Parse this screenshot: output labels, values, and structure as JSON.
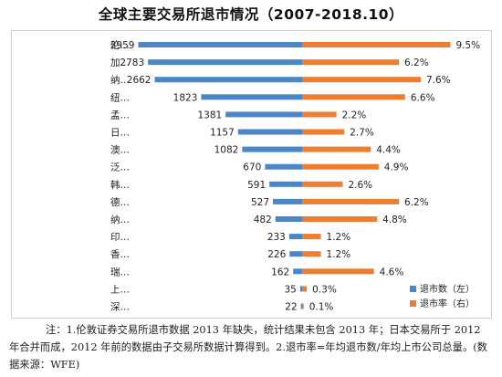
{
  "title": "全球主要交易所退市情况（2007-2018.10）",
  "colors": {
    "left_series": "#4a86c8",
    "right_series": "#ed7d31"
  },
  "chart_data": {
    "type": "bar",
    "orientation": "horizontal",
    "categories": [
      "伦…",
      "加…",
      "纳…",
      "纽…",
      "孟…",
      "日…",
      "澳…",
      "泛…",
      "韩…",
      "德…",
      "纳…",
      "印…",
      "香…",
      "瑞…",
      "上…",
      "深…"
    ],
    "series": [
      {
        "name": "退市数（左）",
        "axis": "left",
        "values": [
          2959,
          2783,
          2662,
          1823,
          1381,
          1157,
          1082,
          670,
          591,
          527,
          482,
          233,
          226,
          162,
          35,
          22
        ],
        "labels": [
          "2959",
          "2783",
          "2662",
          "1823",
          "1381",
          "1157",
          "1082",
          "670",
          "591",
          "527",
          "482",
          "233",
          "226",
          "162",
          "35",
          "22"
        ]
      },
      {
        "name": "退市率（右）",
        "axis": "right",
        "values": [
          9.5,
          6.2,
          7.6,
          6.6,
          2.2,
          2.7,
          4.4,
          4.9,
          2.6,
          6.2,
          4.8,
          1.2,
          1.2,
          4.6,
          0.3,
          0.1
        ],
        "labels": [
          "9.5%",
          "6.2%",
          "7.6%",
          "6.6%",
          "2.2%",
          "2.7%",
          "4.4%",
          "4.9%",
          "2.6%",
          "6.2%",
          "4.8%",
          "1.2%",
          "1.2%",
          "4.6%",
          "0.3%",
          "0.1%"
        ]
      }
    ],
    "left_xlim": [
      0,
      3000
    ],
    "right_xlim": [
      0,
      10
    ],
    "legend_position": "bottom-right",
    "grid": false
  },
  "note": "注：1.伦敦证券交易所退市数据 2013 年缺失，统计结果未包含 2013 年；日本交易所于 2012 年合并而成，2012 年前的数据由子交易所数据计算得到。2.退市率=年均退市数/年均上市公司总量。(数据来源：WFE)"
}
